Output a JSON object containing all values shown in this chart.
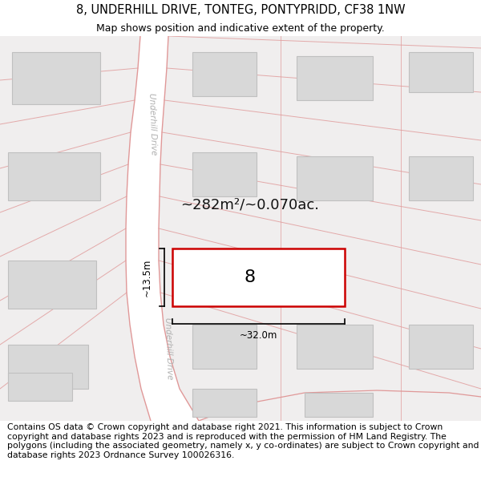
{
  "title_line1": "8, UNDERHILL DRIVE, TONTEG, PONTYPRIDD, CF38 1NW",
  "title_line2": "Map shows position and indicative extent of the property.",
  "footer_text": "Contains OS data © Crown copyright and database right 2021. This information is subject to Crown copyright and database rights 2023 and is reproduced with the permission of HM Land Registry. The polygons (including the associated geometry, namely x, y co-ordinates) are subject to Crown copyright and database rights 2023 Ordnance Survey 100026316.",
  "bg_color": "#ffffff",
  "road_fill": "#ffffff",
  "road_edge": "#e09898",
  "block_fill": "#f0eeee",
  "building_fill": "#d8d8d8",
  "building_edge": "#c0c0c0",
  "property_stroke": "#cc0000",
  "property_fill": "#ffffff",
  "property_label": "8",
  "area_label": "~282m²/~0.070ac.",
  "dim_h_label": "~13.5m",
  "dim_w_label": "~32.0m",
  "road_label": "Underhill Drive",
  "title_fontsize": 10.5,
  "subtitle_fontsize": 9,
  "footer_fontsize": 7.8,
  "road_label_fontsize": 7.5,
  "prop_label_fontsize": 16,
  "area_fontsize": 13,
  "dim_fontsize": 8.5
}
